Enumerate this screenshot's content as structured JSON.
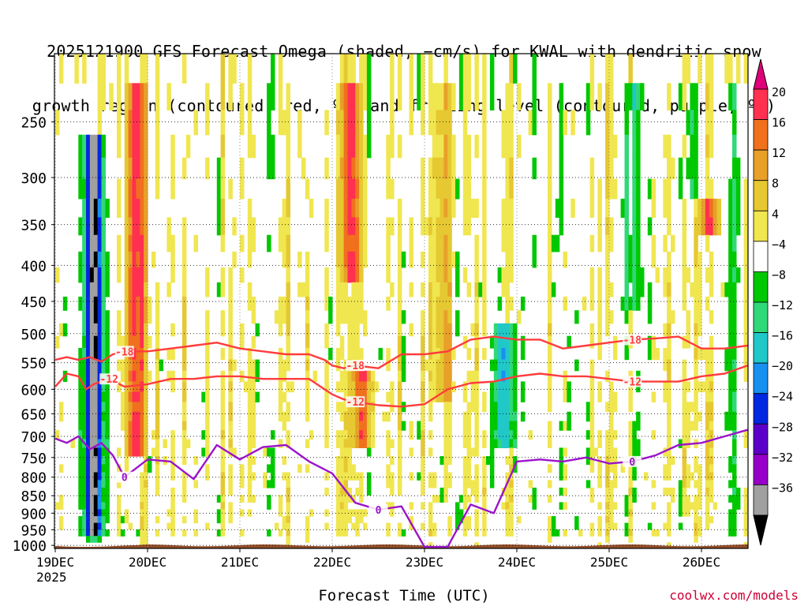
{
  "title": {
    "line1": "2025121900 GFS Forecast Omega (shaded, −cm/s) for KWAL with dendritic snow",
    "line2": "growth region (contoured, red, ºC) and freezing level (contoured, purple, ºC)"
  },
  "credit": "coolwx.com/models",
  "chart_data": {
    "type": "heatmap",
    "title": "2025121900 GFS Forecast Omega (shaded, −cm/s) for KWAL with dendritic snow growth region (contoured, red, ºC) and freezing level (contoured, purple, ºC)",
    "xlabel": "Forecast Time (UTC)",
    "ylabel": "",
    "x_ticks": [
      "19DEC",
      "20DEC",
      "21DEC",
      "22DEC",
      "23DEC",
      "24DEC",
      "25DEC",
      "26DEC"
    ],
    "x_year_label": "2025",
    "x_range_hours": [
      0,
      180
    ],
    "y_ticks": [
      250,
      300,
      350,
      400,
      450,
      500,
      550,
      600,
      650,
      700,
      750,
      800,
      850,
      900,
      950,
      1000
    ],
    "y_range_hpa": [
      200,
      1010
    ],
    "colorbar": {
      "tick_labels": [
        "20",
        "16",
        "12",
        "8",
        "4",
        "−4",
        "−8",
        "−12",
        "−16",
        "−20",
        "−24",
        "−28",
        "−32",
        "−36"
      ],
      "colors": [
        "#e0007a",
        "#ff3050",
        "#f0701e",
        "#e8a028",
        "#e6c832",
        "#f0e650",
        "#ffffff",
        "#00c800",
        "#30d878",
        "#20c8c8",
        "#1890f0",
        "#0028e0",
        "#5a00c8",
        "#9600c8",
        "#a0a0a0",
        "#000000"
      ]
    },
    "series": [
      {
        "name": "dendritic -12 ºC",
        "color": "#ff3c3c",
        "label": "-12",
        "x": [
          0,
          3,
          6,
          8,
          10,
          12,
          14,
          18,
          24,
          30,
          36,
          42,
          48,
          54,
          60,
          66,
          70,
          72,
          75,
          78,
          84,
          90,
          96,
          102,
          108,
          114,
          120,
          126,
          132,
          138,
          144,
          150,
          156,
          162,
          168,
          174,
          180
        ],
        "y": [
          595,
          570,
          575,
          600,
          590,
          585,
          580,
          595,
          590,
          580,
          580,
          575,
          575,
          580,
          580,
          580,
          600,
          610,
          620,
          625,
          632,
          635,
          630,
          600,
          588,
          585,
          575,
          570,
          575,
          575,
          580,
          585,
          585,
          585,
          575,
          570,
          555
        ]
      },
      {
        "name": "dendritic -18 ºC",
        "color": "#ff3c3c",
        "label": "-18",
        "x": [
          0,
          3,
          6,
          9,
          12,
          15,
          18,
          24,
          30,
          36,
          42,
          48,
          54,
          60,
          66,
          70,
          72,
          75,
          78,
          84,
          90,
          96,
          102,
          108,
          114,
          120,
          126,
          132,
          138,
          144,
          150,
          156,
          162,
          168,
          174,
          180
        ],
        "y": [
          545,
          540,
          545,
          540,
          548,
          535,
          530,
          530,
          525,
          520,
          515,
          525,
          530,
          535,
          535,
          545,
          555,
          560,
          555,
          560,
          535,
          535,
          530,
          510,
          505,
          510,
          510,
          525,
          520,
          515,
          510,
          508,
          505,
          525,
          525,
          520
        ]
      },
      {
        "name": "freezing level 0 ºC",
        "color": "#9b14c8",
        "label": "0",
        "x": [
          0,
          3,
          6,
          9,
          12,
          15,
          18,
          24,
          30,
          36,
          42,
          48,
          54,
          60,
          66,
          72,
          78,
          84,
          90,
          96,
          102,
          108,
          114,
          120,
          126,
          132,
          138,
          144,
          150,
          156,
          162,
          168,
          174,
          180
        ],
        "y": [
          705,
          715,
          700,
          730,
          715,
          745,
          800,
          755,
          760,
          805,
          720,
          755,
          725,
          720,
          760,
          790,
          870,
          890,
          880,
          1005,
          1005,
          875,
          900,
          760,
          755,
          760,
          750,
          765,
          760,
          745,
          720,
          715,
          700,
          685
        ]
      }
    ],
    "omega_features": [
      {
        "time_h": 10,
        "p_top_hpa": 260,
        "p_bottom_hpa": 980,
        "value": -36
      },
      {
        "time_h": 21,
        "p_top_hpa": 220,
        "p_bottom_hpa": 740,
        "value": 20
      },
      {
        "time_h": 77,
        "p_top_hpa": 220,
        "p_bottom_hpa": 420,
        "value": 16
      },
      {
        "time_h": 80,
        "p_top_hpa": 560,
        "p_bottom_hpa": 720,
        "value": 16
      },
      {
        "time_h": 170,
        "p_top_hpa": 320,
        "p_bottom_hpa": 360,
        "value": 16
      },
      {
        "time_h": 101,
        "p_top_hpa": 220,
        "p_bottom_hpa": 620,
        "value": 8
      },
      {
        "time_h": 117,
        "p_top_hpa": 480,
        "p_bottom_hpa": 720,
        "value": -16
      },
      {
        "time_h": 150,
        "p_top_hpa": 220,
        "p_bottom_hpa": 470,
        "value": -8
      },
      {
        "time_h": 166,
        "p_top_hpa": 220,
        "p_bottom_hpa": 330,
        "value": -8
      },
      {
        "time_h": 176,
        "p_top_hpa": 220,
        "p_bottom_hpa": 960,
        "value": -8
      }
    ]
  }
}
